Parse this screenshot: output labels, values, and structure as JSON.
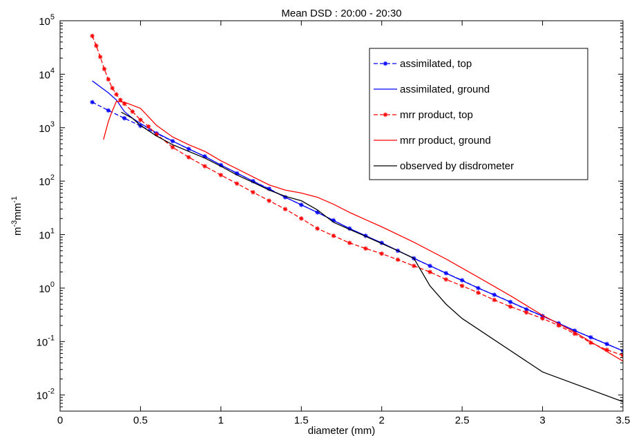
{
  "chart_data": {
    "type": "line",
    "title": "Mean DSD : 20:00 - 20:30",
    "xlabel": "diameter (mm)",
    "ylabel": {
      "base": "m",
      "sup1": "-3",
      "mid": "mm",
      "sup2": "-1"
    },
    "xlim": [
      0,
      3.5
    ],
    "ylim": [
      0.005,
      100000
    ],
    "yscale": "log",
    "x_ticks": [
      0,
      0.5,
      1,
      1.5,
      2,
      2.5,
      3,
      3.5
    ],
    "x_tick_labels": [
      "0",
      "0.5",
      "1",
      "1.5",
      "2",
      "2.5",
      "3",
      "3.5"
    ],
    "y_ticks": [
      {
        "value": 0.01,
        "base": "10",
        "exp": "-2"
      },
      {
        "value": 0.1,
        "base": "10",
        "exp": "-1"
      },
      {
        "value": 1,
        "base": "10",
        "exp": "0"
      },
      {
        "value": 10,
        "base": "10",
        "exp": "1"
      },
      {
        "value": 100,
        "base": "10",
        "exp": "2"
      },
      {
        "value": 1000,
        "base": "10",
        "exp": "3"
      },
      {
        "value": 10000,
        "base": "10",
        "exp": "4"
      },
      {
        "value": 100000,
        "base": "10",
        "exp": "5"
      }
    ],
    "grid": false,
    "legend_position": "top-right",
    "series": [
      {
        "name": "assimilated, top",
        "color": "#0000ff",
        "line_style": "dashed",
        "marker": "star",
        "x": [
          0.2,
          0.3,
          0.4,
          0.5,
          0.6,
          0.7,
          0.8,
          0.9,
          1.0,
          1.1,
          1.2,
          1.3,
          1.4,
          1.5,
          1.6,
          1.7,
          1.8,
          1.9,
          2.0,
          2.1,
          2.2,
          2.3,
          2.4,
          2.5,
          2.6,
          2.7,
          2.8,
          2.9,
          3.0,
          3.1,
          3.2,
          3.3,
          3.4,
          3.5
        ],
        "y": [
          3000,
          2100,
          1500,
          1080,
          780,
          560,
          400,
          290,
          200,
          140,
          100,
          72,
          50,
          36,
          26,
          18.5,
          13,
          9.5,
          7,
          5,
          3.6,
          2.6,
          1.9,
          1.4,
          1.0,
          0.75,
          0.55,
          0.4,
          0.3,
          0.22,
          0.16,
          0.12,
          0.09,
          0.067
        ]
      },
      {
        "name": "assimilated, ground",
        "color": "#0000ff",
        "line_style": "solid",
        "marker": "none",
        "x": [
          0.2,
          0.3,
          0.35,
          0.4,
          0.45,
          0.5,
          0.6,
          0.7,
          0.8,
          0.9,
          1.0,
          1.2,
          1.4,
          1.6,
          1.8,
          2.0,
          2.2,
          2.4,
          2.6,
          2.8,
          3.0,
          3.2,
          3.5
        ],
        "y": [
          7500,
          4500,
          3300,
          2000,
          1500,
          1200,
          800,
          560,
          400,
          290,
          200,
          100,
          50,
          26,
          13,
          7,
          3.6,
          1.9,
          1.0,
          0.55,
          0.3,
          0.16,
          0.067
        ]
      },
      {
        "name": "mrr product, top",
        "color": "#ff0000",
        "line_style": "dashed",
        "marker": "star",
        "x": [
          0.2,
          0.225,
          0.25,
          0.275,
          0.3,
          0.325,
          0.35,
          0.375,
          0.4,
          0.45,
          0.5,
          0.55,
          0.6,
          0.7,
          0.8,
          0.9,
          1.0,
          1.1,
          1.2,
          1.3,
          1.4,
          1.5,
          1.6,
          1.7,
          1.8,
          1.9,
          2.0,
          2.1,
          2.2,
          2.3,
          2.4,
          2.5,
          2.6,
          2.7,
          2.8,
          2.9,
          3.0,
          3.1,
          3.2,
          3.3,
          3.4,
          3.5
        ],
        "y": [
          52000,
          34000,
          21000,
          12500,
          8000,
          5500,
          4200,
          3300,
          2800,
          2000,
          1400,
          1050,
          750,
          430,
          280,
          190,
          130,
          90,
          62,
          43,
          30,
          20,
          13,
          9.5,
          7,
          5.5,
          4.4,
          3.4,
          2.6,
          2.0,
          1.45,
          1.1,
          0.82,
          0.6,
          0.45,
          0.35,
          0.27,
          0.2,
          0.14,
          0.095,
          0.07,
          0.055
        ]
      },
      {
        "name": "mrr product, ground",
        "color": "#ff0000",
        "line_style": "solid",
        "marker": "none",
        "x": [
          0.27,
          0.3,
          0.32,
          0.35,
          0.4,
          0.5,
          0.6,
          0.7,
          0.8,
          0.9,
          1.0,
          1.1,
          1.2,
          1.3,
          1.4,
          1.5,
          1.6,
          1.7,
          1.8,
          1.9,
          2.0,
          2.2,
          2.4,
          2.6,
          2.8,
          3.0,
          3.2,
          3.5
        ],
        "y": [
          600,
          1300,
          1900,
          3100,
          3000,
          2300,
          1100,
          670,
          480,
          360,
          240,
          170,
          120,
          85,
          68,
          60,
          50,
          37,
          26,
          19,
          14,
          7.2,
          3.5,
          1.6,
          0.72,
          0.31,
          0.15,
          0.043
        ]
      },
      {
        "name": "observed by disdrometer",
        "color": "#000000",
        "line_style": "solid",
        "marker": "none",
        "x": [
          0.38,
          0.45,
          0.5,
          0.6,
          0.7,
          0.8,
          0.9,
          1.0,
          1.1,
          1.2,
          1.3,
          1.4,
          1.5,
          1.6,
          1.7,
          1.8,
          1.9,
          2.0,
          2.1,
          2.2,
          2.3,
          2.4,
          2.5,
          3.0,
          3.5
        ],
        "y": [
          1950,
          1500,
          1100,
          700,
          480,
          360,
          270,
          190,
          130,
          95,
          68,
          52,
          43,
          29,
          17,
          12.5,
          9.3,
          6.8,
          5,
          3.6,
          1.1,
          0.5,
          0.27,
          0.027,
          0.0075
        ]
      }
    ]
  }
}
